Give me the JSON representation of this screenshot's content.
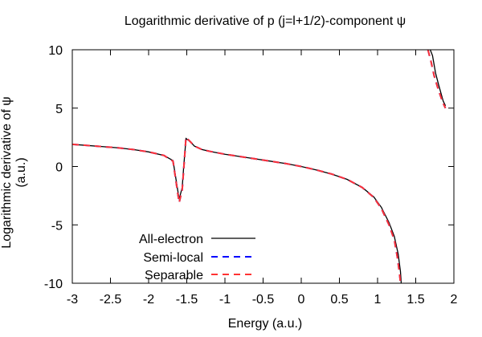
{
  "chart_data": {
    "type": "line",
    "title": "Logarithmic derivative of p (j=l+1/2)-component ψ",
    "xlabel": "Energy (a.u.)",
    "ylabel": "Logarithmic derivative of ψ (a.u.)",
    "xlim": [
      -3,
      2
    ],
    "ylim": [
      -10,
      10
    ],
    "xticks": [
      "-3",
      "-2.5",
      "-2",
      "-1.5",
      "-1",
      "-0.5",
      "0",
      "0.5",
      "1",
      "1.5",
      "2"
    ],
    "xtick_values": [
      -3,
      -2.5,
      -2,
      -1.5,
      -1,
      -0.5,
      0,
      0.5,
      1,
      1.5,
      2
    ],
    "yticks": [
      "10",
      "5",
      "0",
      "-5",
      "-10"
    ],
    "ytick_values": [
      10,
      5,
      0,
      -5,
      -10
    ],
    "grid": false,
    "legend_position": "bottom-left",
    "series": [
      {
        "name": "All-electron",
        "color": "#000000",
        "dash": "solid",
        "segments": [
          [
            [
              -3.0,
              1.9
            ],
            [
              -2.8,
              1.8
            ],
            [
              -2.6,
              1.7
            ],
            [
              -2.4,
              1.6
            ],
            [
              -2.2,
              1.45
            ],
            [
              -2.0,
              1.25
            ],
            [
              -1.8,
              0.95
            ],
            [
              -1.68,
              0.5
            ],
            [
              -1.6,
              -2.8
            ],
            [
              -1.56,
              -1.8
            ],
            [
              -1.54,
              0.0
            ],
            [
              -1.51,
              2.4
            ],
            [
              -1.45,
              2.1
            ],
            [
              -1.4,
              1.75
            ],
            [
              -1.3,
              1.45
            ],
            [
              -1.2,
              1.3
            ],
            [
              -1.0,
              1.05
            ],
            [
              -0.8,
              0.85
            ],
            [
              -0.6,
              0.65
            ],
            [
              -0.4,
              0.45
            ],
            [
              -0.2,
              0.25
            ],
            [
              0.0,
              0.0
            ],
            [
              0.2,
              -0.3
            ],
            [
              0.4,
              -0.65
            ],
            [
              0.6,
              -1.1
            ],
            [
              0.8,
              -1.8
            ],
            [
              0.95,
              -2.6
            ],
            [
              1.05,
              -3.5
            ],
            [
              1.15,
              -4.8
            ],
            [
              1.22,
              -6.0
            ],
            [
              1.27,
              -7.5
            ],
            [
              1.3,
              -9.0
            ],
            [
              1.31,
              -10.0
            ]
          ],
          [
            [
              1.69,
              10.0
            ],
            [
              1.72,
              9.5
            ],
            [
              1.76,
              8.0
            ],
            [
              1.8,
              7.0
            ],
            [
              1.86,
              5.6
            ],
            [
              1.89,
              5.2
            ]
          ]
        ]
      },
      {
        "name": "Semi-local",
        "color": "#0000ff",
        "dash": "8,6",
        "segments": [
          [
            [
              -3.0,
              1.9
            ],
            [
              -2.8,
              1.8
            ],
            [
              -2.6,
              1.7
            ],
            [
              -2.4,
              1.6
            ],
            [
              -2.2,
              1.45
            ],
            [
              -2.0,
              1.25
            ],
            [
              -1.8,
              0.95
            ],
            [
              -1.68,
              0.45
            ],
            [
              -1.6,
              -3.1
            ],
            [
              -1.56,
              -2.0
            ],
            [
              -1.54,
              -0.2
            ],
            [
              -1.51,
              2.5
            ],
            [
              -1.45,
              2.1
            ],
            [
              -1.4,
              1.75
            ],
            [
              -1.3,
              1.45
            ],
            [
              -1.2,
              1.3
            ],
            [
              -1.0,
              1.05
            ],
            [
              -0.8,
              0.85
            ],
            [
              -0.6,
              0.65
            ],
            [
              -0.4,
              0.45
            ],
            [
              -0.2,
              0.25
            ],
            [
              0.0,
              0.0
            ],
            [
              0.2,
              -0.3
            ],
            [
              0.4,
              -0.65
            ],
            [
              0.6,
              -1.1
            ],
            [
              0.8,
              -1.8
            ],
            [
              0.95,
              -2.65
            ],
            [
              1.05,
              -3.6
            ],
            [
              1.15,
              -5.0
            ],
            [
              1.22,
              -6.3
            ],
            [
              1.26,
              -7.8
            ],
            [
              1.29,
              -9.3
            ],
            [
              1.3,
              -10.0
            ]
          ],
          [
            [
              1.66,
              10.0
            ],
            [
              1.7,
              9.0
            ],
            [
              1.74,
              7.8
            ],
            [
              1.8,
              6.5
            ],
            [
              1.86,
              5.4
            ],
            [
              1.89,
              5.0
            ]
          ]
        ]
      },
      {
        "name": "Separable",
        "color": "#ff3333",
        "dash": "8,6",
        "segments": [
          [
            [
              -3.0,
              1.9
            ],
            [
              -2.8,
              1.8
            ],
            [
              -2.6,
              1.7
            ],
            [
              -2.4,
              1.6
            ],
            [
              -2.2,
              1.45
            ],
            [
              -2.0,
              1.25
            ],
            [
              -1.8,
              0.95
            ],
            [
              -1.68,
              0.45
            ],
            [
              -1.6,
              -3.1
            ],
            [
              -1.56,
              -2.0
            ],
            [
              -1.54,
              -0.2
            ],
            [
              -1.51,
              2.5
            ],
            [
              -1.45,
              2.1
            ],
            [
              -1.4,
              1.75
            ],
            [
              -1.3,
              1.45
            ],
            [
              -1.2,
              1.3
            ],
            [
              -1.0,
              1.05
            ],
            [
              -0.8,
              0.85
            ],
            [
              -0.6,
              0.65
            ],
            [
              -0.4,
              0.45
            ],
            [
              -0.2,
              0.25
            ],
            [
              0.0,
              0.0
            ],
            [
              0.2,
              -0.3
            ],
            [
              0.4,
              -0.65
            ],
            [
              0.6,
              -1.1
            ],
            [
              0.8,
              -1.8
            ],
            [
              0.95,
              -2.65
            ],
            [
              1.05,
              -3.6
            ],
            [
              1.15,
              -5.0
            ],
            [
              1.22,
              -6.3
            ],
            [
              1.26,
              -7.8
            ],
            [
              1.29,
              -9.3
            ],
            [
              1.3,
              -10.0
            ]
          ],
          [
            [
              1.66,
              10.0
            ],
            [
              1.7,
              9.0
            ],
            [
              1.74,
              7.8
            ],
            [
              1.8,
              6.5
            ],
            [
              1.86,
              5.4
            ],
            [
              1.89,
              5.0
            ]
          ]
        ]
      }
    ]
  }
}
